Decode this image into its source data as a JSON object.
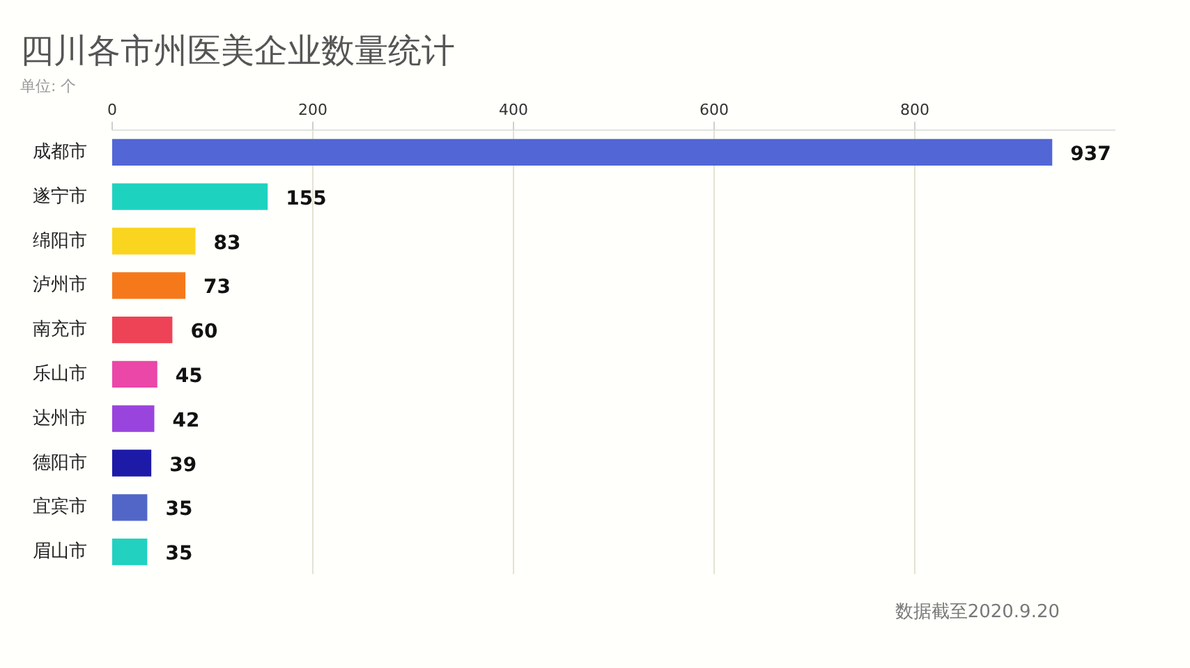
{
  "chart_data": {
    "type": "bar",
    "orientation": "horizontal",
    "title": "四川各市州医美企业数量统计",
    "subtitle": "单位: 个",
    "categories": [
      "成都市",
      "遂宁市",
      "绵阳市",
      "泸州市",
      "南充市",
      "乐山市",
      "达州市",
      "德阳市",
      "宜宾市",
      "眉山市"
    ],
    "values": [
      937,
      155,
      83,
      73,
      60,
      45,
      42,
      39,
      35,
      35
    ],
    "colors": [
      "#5266d6",
      "#1dd3c0",
      "#f9d51f",
      "#f5791a",
      "#ee4356",
      "#ea47a8",
      "#9a44de",
      "#1d1aa8",
      "#5266c8",
      "#22d1c0"
    ],
    "xlim": [
      0,
      1000
    ],
    "xticks": [
      0,
      200,
      400,
      600,
      800
    ],
    "grid": "x",
    "data_labels": true,
    "annotations": [
      "数据截至2020.9.20"
    ]
  }
}
